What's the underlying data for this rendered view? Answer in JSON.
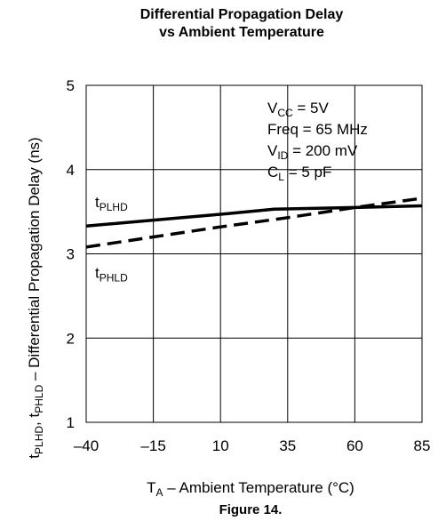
{
  "chart_data": {
    "type": "line",
    "title_lines": [
      "Differential Propagation Delay",
      "vs Ambient Temperature"
    ],
    "caption": "Figure 14.",
    "xlabel": {
      "main": "T",
      "sub": "A",
      "rest": " – Ambient Temperature (°C)"
    },
    "ylabel": [
      {
        "t": "t",
        "sub": false
      },
      {
        "t": "PLHD",
        "sub": true
      },
      {
        "t": ", t",
        "sub": false
      },
      {
        "t": "PHLD",
        "sub": true
      },
      {
        "t": " – Differential Propagation Delay (ns)",
        "sub": false
      }
    ],
    "xlim": [
      -40,
      85
    ],
    "ylim": [
      1,
      5
    ],
    "x_ticks": [
      -40,
      -15,
      10,
      35,
      60,
      85
    ],
    "x_tick_labels": [
      "–40",
      "–15",
      "10",
      "35",
      "60",
      "85"
    ],
    "y_ticks": [
      1,
      2,
      3,
      4,
      5
    ],
    "y_tick_labels": [
      "1",
      "2",
      "3",
      "4",
      "5"
    ],
    "grid": true,
    "conditions": [
      {
        "main": "V",
        "sub": "CC",
        "rest": " = 5V"
      },
      {
        "main": "Freq = 65 MHz",
        "sub": "",
        "rest": ""
      },
      {
        "main": "V",
        "sub": "ID",
        "rest": " = 200 mV"
      },
      {
        "main": "C",
        "sub": "L",
        "rest": " = 5 pF"
      }
    ],
    "series": [
      {
        "name": "PLHD",
        "label_main": "t",
        "label_sub": "PLHD",
        "style": "solid",
        "label_at": [
          -40,
          3.62
        ],
        "x": [
          -40,
          -15,
          10,
          30,
          60,
          85
        ],
        "y": [
          3.33,
          3.4,
          3.47,
          3.53,
          3.55,
          3.57
        ]
      },
      {
        "name": "PHLD",
        "label_main": "t",
        "label_sub": "PHLD",
        "style": "dashed",
        "label_at": [
          -40,
          2.78
        ],
        "x": [
          -40,
          -15,
          10,
          35,
          60,
          85
        ],
        "y": [
          3.08,
          3.2,
          3.32,
          3.43,
          3.55,
          3.66
        ]
      }
    ]
  }
}
